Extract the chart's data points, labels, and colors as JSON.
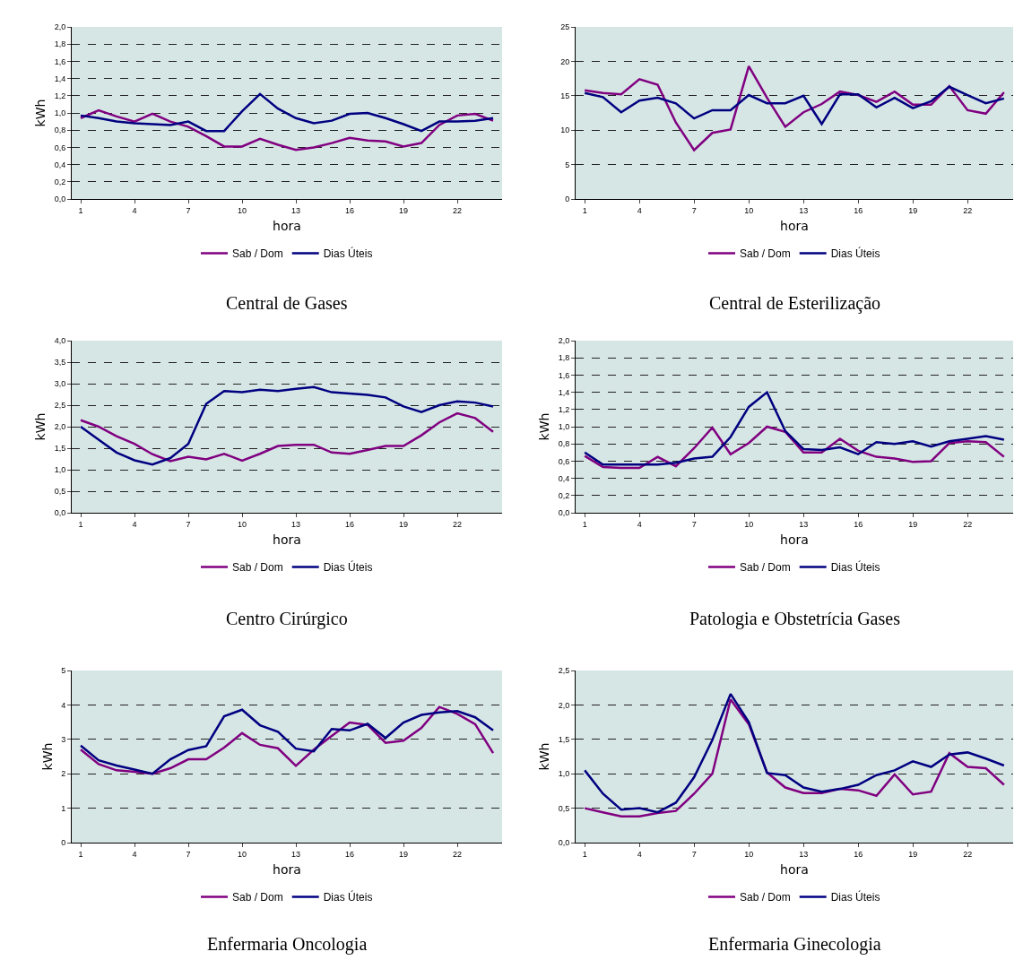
{
  "chart_data": [
    {
      "type": "line",
      "title": "Central de Gases",
      "xlabel": "hora",
      "ylabel": "kWh",
      "categories": [
        "1",
        null,
        null,
        "4",
        null,
        null,
        "7",
        null,
        null,
        "10",
        null,
        null,
        "13",
        null,
        null,
        "16",
        null,
        null,
        "19",
        null,
        null,
        "22",
        null,
        null
      ],
      "ylim": [
        0,
        2
      ],
      "yticks": [
        {
          "value": 0,
          "label": "0,0"
        },
        {
          "value": 0.2,
          "label": "0,2"
        },
        {
          "value": 0.4,
          "label": "0,4"
        },
        {
          "value": 0.6,
          "label": "0,6"
        },
        {
          "value": 0.8,
          "label": "0,8"
        },
        {
          "value": 1,
          "label": "1,0"
        },
        {
          "value": 1.2,
          "label": "1,2"
        },
        {
          "value": 1.4,
          "label": "1,4"
        },
        {
          "value": 1.6,
          "label": "1,6"
        },
        {
          "value": 1.8,
          "label": "1,8"
        },
        {
          "value": 2,
          "label": "2,0"
        }
      ],
      "grid": "y",
      "legend": "bottom",
      "marker": "none",
      "line_style": "solid",
      "series": [
        {
          "name": "Sab / Dom",
          "color": "#800080",
          "values": [
            0.94,
            1.03,
            0.96,
            0.9,
            0.99,
            0.9,
            0.84,
            0.73,
            0.61,
            0.61,
            0.7,
            0.63,
            0.57,
            0.6,
            0.65,
            0.71,
            0.68,
            0.67,
            0.61,
            0.65,
            0.86,
            0.97,
            0.99,
            0.91
          ]
        },
        {
          "name": "Dias Úteis",
          "color": "#000080",
          "values": [
            0.97,
            0.94,
            0.9,
            0.88,
            0.87,
            0.86,
            0.9,
            0.79,
            0.79,
            1.02,
            1.22,
            1.05,
            0.94,
            0.88,
            0.91,
            0.99,
            1.0,
            0.94,
            0.87,
            0.79,
            0.9,
            0.9,
            0.91,
            0.94
          ]
        }
      ]
    },
    {
      "type": "line",
      "title": "Central de Esterilização",
      "xlabel": "hora",
      "categories": [
        "1",
        null,
        null,
        "4",
        null,
        null,
        "7",
        null,
        null,
        "10",
        null,
        null,
        "13",
        null,
        null,
        "16",
        null,
        null,
        "19",
        null,
        null,
        "22",
        null,
        null
      ],
      "ylim": [
        0,
        25
      ],
      "yticks": [
        0,
        5,
        10,
        15,
        20,
        25
      ],
      "grid": "y",
      "legend": "bottom",
      "marker": "none",
      "line_style": "solid",
      "series": [
        {
          "name": "Sab / Dom",
          "color": "#800080",
          "values": [
            15.8,
            15.4,
            15.2,
            17.4,
            16.6,
            11.1,
            7.1,
            9.6,
            10.1,
            19.3,
            14.7,
            10.5,
            12.6,
            13.8,
            15.6,
            15.1,
            14.1,
            15.6,
            13.7,
            13.7,
            16.4,
            12.9,
            12.4,
            15.5
          ]
        },
        {
          "name": "Dias Úteis",
          "color": "#000080",
          "values": [
            15.4,
            14.8,
            12.6,
            14.3,
            14.7,
            13.9,
            11.7,
            12.9,
            12.9,
            15.1,
            13.9,
            13.9,
            15.0,
            10.9,
            15.2,
            15.2,
            13.3,
            14.7,
            13.2,
            14.2,
            16.3,
            15.1,
            13.9,
            14.6
          ]
        }
      ]
    },
    {
      "type": "line",
      "title": "Centro Cirúrgico",
      "xlabel": "hora",
      "ylabel": "kWh",
      "categories": [
        "1",
        null,
        null,
        "4",
        null,
        null,
        "7",
        null,
        null,
        "10",
        null,
        null,
        "13",
        null,
        null,
        "16",
        null,
        null,
        "19",
        null,
        null,
        "22",
        null,
        null
      ],
      "ylim": [
        0,
        4
      ],
      "yticks": [
        {
          "value": 0,
          "label": "0,0"
        },
        {
          "value": 0.5,
          "label": "0,5"
        },
        {
          "value": 1,
          "label": "1,0"
        },
        {
          "value": 1.5,
          "label": "1,5"
        },
        {
          "value": 2,
          "label": "2,0"
        },
        {
          "value": 2.5,
          "label": "2,5"
        },
        {
          "value": 3,
          "label": "3,0"
        },
        {
          "value": 3.5,
          "label": "3,5"
        },
        {
          "value": 4,
          "label": "4,0"
        }
      ],
      "grid": "y",
      "legend": "bottom",
      "marker": "none",
      "line_style": "solid",
      "series": [
        {
          "name": "Sab / Dom",
          "color": "#800080",
          "values": [
            2.15,
            2.0,
            1.78,
            1.6,
            1.36,
            1.2,
            1.3,
            1.24,
            1.37,
            1.21,
            1.37,
            1.55,
            1.58,
            1.58,
            1.4,
            1.37,
            1.46,
            1.55,
            1.55,
            1.8,
            2.1,
            2.31,
            2.2,
            1.88
          ]
        },
        {
          "name": "Dias Úteis",
          "color": "#000080",
          "values": [
            2.0,
            1.7,
            1.4,
            1.22,
            1.12,
            1.27,
            1.6,
            2.53,
            2.83,
            2.8,
            2.86,
            2.83,
            2.88,
            2.92,
            2.8,
            2.77,
            2.74,
            2.68,
            2.47,
            2.34,
            2.5,
            2.59,
            2.56,
            2.47
          ]
        }
      ]
    },
    {
      "type": "line",
      "title": "Patologia e Obstetrícia Gases",
      "xlabel": "hora",
      "ylabel": "kWh",
      "categories": [
        "1",
        null,
        null,
        "4",
        null,
        null,
        "7",
        null,
        null,
        "10",
        null,
        null,
        "13",
        null,
        null,
        "16",
        null,
        null,
        "19",
        null,
        null,
        "22",
        null,
        null
      ],
      "ylim": [
        0,
        2
      ],
      "yticks": [
        {
          "value": 0,
          "label": "0,0"
        },
        {
          "value": 0.2,
          "label": "0,2"
        },
        {
          "value": 0.4,
          "label": "0,4"
        },
        {
          "value": 0.6,
          "label": "0,6"
        },
        {
          "value": 0.8,
          "label": "0,8"
        },
        {
          "value": 1,
          "label": "1,0"
        },
        {
          "value": 1.2,
          "label": "1,2"
        },
        {
          "value": 1.4,
          "label": "1,4"
        },
        {
          "value": 1.6,
          "label": "1,6"
        },
        {
          "value": 1.8,
          "label": "1,8"
        },
        {
          "value": 2,
          "label": "2,0"
        }
      ],
      "grid": "y",
      "legend": "bottom",
      "marker": "none",
      "line_style": "solid",
      "series": [
        {
          "name": "Sab / Dom",
          "color": "#800080",
          "values": [
            0.66,
            0.53,
            0.52,
            0.52,
            0.65,
            0.54,
            0.75,
            0.99,
            0.68,
            0.81,
            1.0,
            0.94,
            0.7,
            0.7,
            0.86,
            0.72,
            0.65,
            0.63,
            0.59,
            0.6,
            0.81,
            0.83,
            0.82,
            0.65
          ]
        },
        {
          "name": "Dias Úteis",
          "color": "#000080",
          "values": [
            0.7,
            0.56,
            0.56,
            0.56,
            0.56,
            0.58,
            0.63,
            0.65,
            0.88,
            1.23,
            1.4,
            0.95,
            0.74,
            0.73,
            0.76,
            0.68,
            0.82,
            0.8,
            0.83,
            0.77,
            0.83,
            0.86,
            0.89,
            0.85
          ]
        }
      ]
    },
    {
      "type": "line",
      "title": "Enfermaria Oncologia",
      "xlabel": "hora",
      "ylabel": "kWh",
      "categories": [
        "1",
        null,
        null,
        "4",
        null,
        null,
        "7",
        null,
        null,
        "10",
        null,
        null,
        "13",
        null,
        null,
        "16",
        null,
        null,
        "19",
        null,
        null,
        "22",
        null,
        null
      ],
      "ylim": [
        0,
        5
      ],
      "yticks": [
        0,
        1,
        2,
        3,
        4,
        5
      ],
      "grid": "y",
      "legend": "bottom",
      "marker": "none",
      "line_style": "solid",
      "series": [
        {
          "name": "Sab / Dom",
          "color": "#800080",
          "values": [
            2.7,
            2.28,
            2.1,
            2.06,
            2.0,
            2.16,
            2.42,
            2.42,
            2.76,
            3.18,
            2.84,
            2.74,
            2.23,
            2.7,
            3.1,
            3.49,
            3.42,
            2.9,
            2.96,
            3.33,
            3.94,
            3.74,
            3.44,
            2.6
          ]
        },
        {
          "name": "Dias Úteis",
          "color": "#000080",
          "values": [
            2.82,
            2.39,
            2.24,
            2.12,
            2.0,
            2.42,
            2.69,
            2.8,
            3.67,
            3.86,
            3.41,
            3.22,
            2.73,
            2.65,
            3.3,
            3.26,
            3.45,
            3.04,
            3.49,
            3.71,
            3.78,
            3.82,
            3.64,
            3.26
          ]
        }
      ]
    },
    {
      "type": "line",
      "title": "Enfermaria Ginecologia",
      "xlabel": "hora",
      "ylabel": "kWh",
      "categories": [
        "1",
        null,
        null,
        "4",
        null,
        null,
        "7",
        null,
        null,
        "10",
        null,
        null,
        "13",
        null,
        null,
        "16",
        null,
        null,
        "19",
        null,
        null,
        "22",
        null,
        null
      ],
      "ylim": [
        0,
        2.5
      ],
      "yticks": [
        {
          "value": 0,
          "label": "0,0"
        },
        {
          "value": 0.5,
          "label": "0,5"
        },
        {
          "value": 1,
          "label": "1,0"
        },
        {
          "value": 1.5,
          "label": "1,5"
        },
        {
          "value": 2,
          "label": "2,0"
        },
        {
          "value": 2.5,
          "label": "2,5"
        }
      ],
      "grid": "y",
      "legend": "bottom",
      "marker": "none",
      "line_style": "solid",
      "series": [
        {
          "name": "Sab / Dom",
          "color": "#800080",
          "values": [
            0.5,
            0.44,
            0.38,
            0.38,
            0.43,
            0.46,
            0.71,
            1.0,
            2.08,
            1.72,
            1.02,
            0.8,
            0.72,
            0.72,
            0.78,
            0.76,
            0.68,
            0.99,
            0.7,
            0.74,
            1.3,
            1.1,
            1.08,
            0.84
          ]
        },
        {
          "name": "Dias Úteis",
          "color": "#000080",
          "values": [
            1.05,
            0.71,
            0.48,
            0.5,
            0.44,
            0.58,
            0.95,
            1.49,
            2.16,
            1.75,
            1.01,
            0.98,
            0.8,
            0.74,
            0.78,
            0.84,
            0.98,
            1.05,
            1.18,
            1.1,
            1.28,
            1.31,
            1.22,
            1.12
          ]
        }
      ]
    }
  ]
}
